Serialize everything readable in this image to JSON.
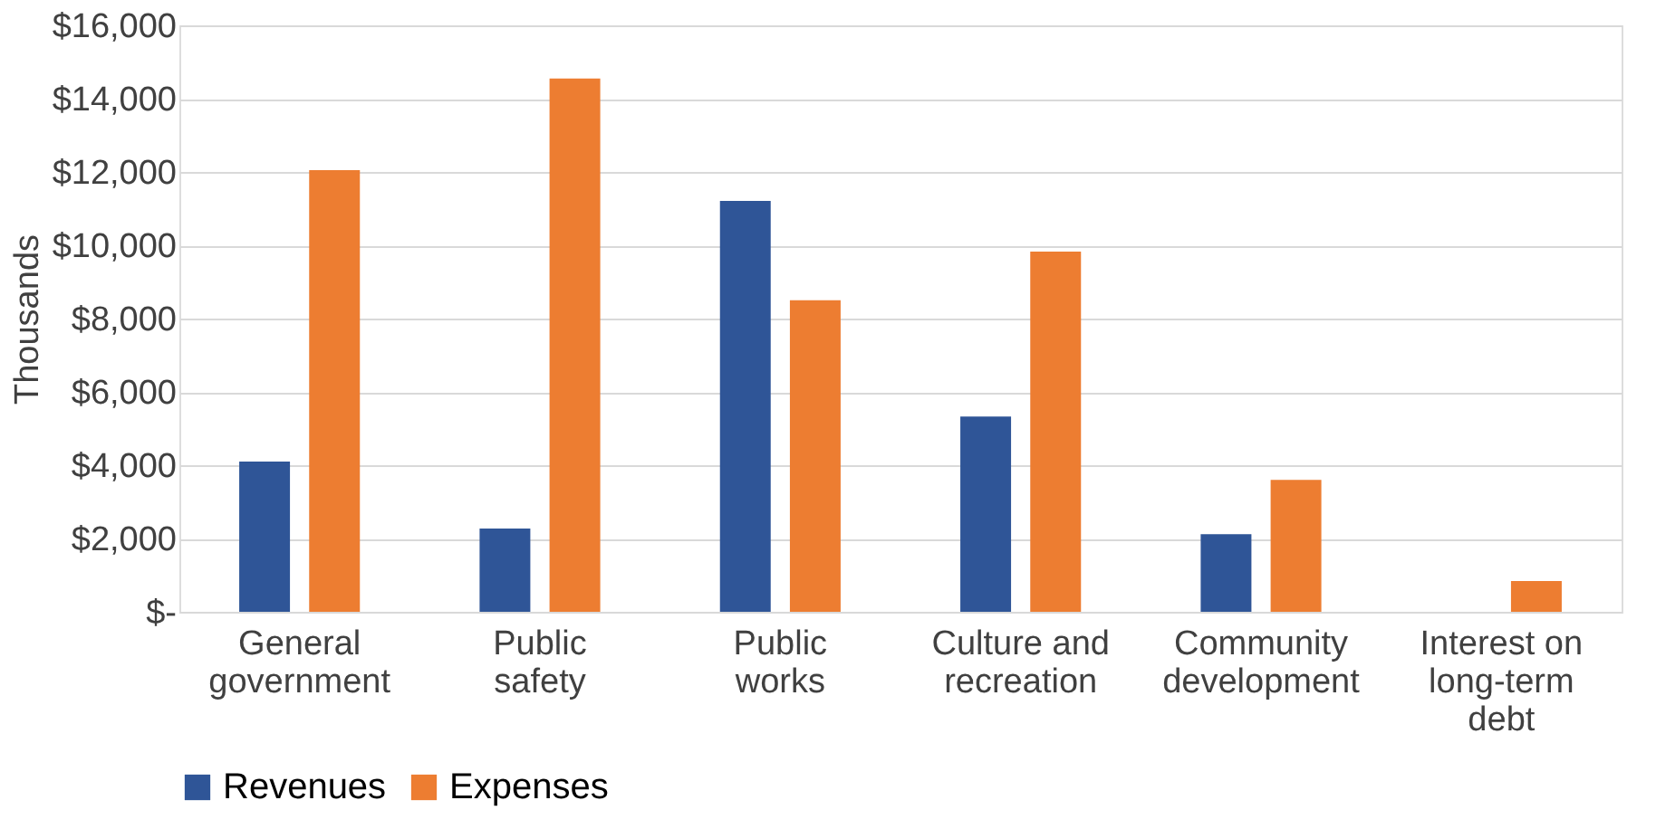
{
  "chart_data": {
    "type": "bar",
    "ylabel": "Thousands",
    "categories": [
      "General government",
      "Public safety",
      "Public works",
      "Culture and recreation",
      "Community development",
      "Interest on long-term debt"
    ],
    "series": [
      {
        "name": "Revenues",
        "color": "#2f5597",
        "values": [
          4100,
          2270,
          11210,
          5330,
          2120,
          null
        ]
      },
      {
        "name": "Expenses",
        "color": "#ed7d31",
        "values": [
          12050,
          14550,
          8500,
          9830,
          3600,
          840
        ]
      }
    ],
    "ylim": [
      0,
      16000
    ],
    "yticks": [
      {
        "value": 0,
        "label": "$-"
      },
      {
        "value": 2000,
        "label": "$2,000"
      },
      {
        "value": 4000,
        "label": "$4,000"
      },
      {
        "value": 6000,
        "label": "$6,000"
      },
      {
        "value": 8000,
        "label": "$8,000"
      },
      {
        "value": 10000,
        "label": "$10,000"
      },
      {
        "value": 12000,
        "label": "$12,000"
      },
      {
        "value": 14000,
        "label": "$14,000"
      },
      {
        "value": 16000,
        "label": "$16,000"
      }
    ],
    "grid": "y",
    "legend": "bottom"
  }
}
